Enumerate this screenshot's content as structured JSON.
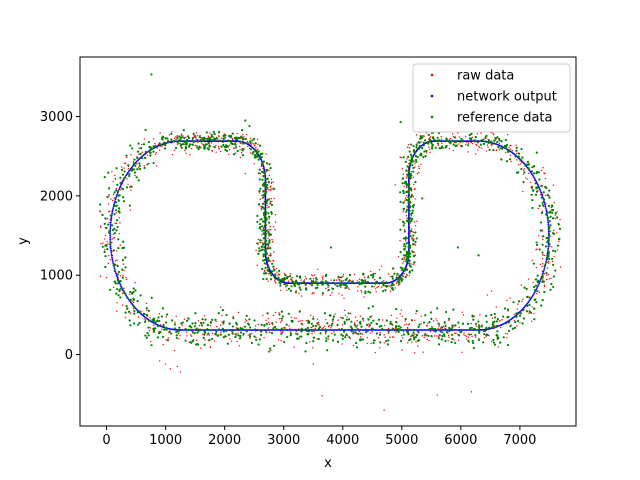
{
  "chart_data": {
    "type": "scatter",
    "title": "",
    "xlabel": "x",
    "ylabel": "y",
    "xlim": [
      -450,
      7950
    ],
    "ylim": [
      -900,
      3750
    ],
    "xticks": [
      0,
      1000,
      2000,
      3000,
      4000,
      5000,
      6000,
      7000
    ],
    "yticks": [
      0,
      1000,
      2000,
      3000
    ],
    "grid": false,
    "legend_position": "top-right",
    "legend": [
      {
        "label": "raw data",
        "color": "#ff0000"
      },
      {
        "label": "network output",
        "color": "#0000ff"
      },
      {
        "label": "reference data",
        "color": "#008000"
      }
    ],
    "series": [
      {
        "name": "raw data",
        "color": "#ff0000",
        "marker": "point",
        "points": [
          [
            -20,
            1500
          ],
          [
            10,
            1420
          ],
          [
            60,
            1350
          ],
          [
            -30,
            1320
          ],
          [
            100,
            1250
          ],
          [
            900,
            -80
          ],
          [
            1000,
            -120
          ],
          [
            1080,
            -180
          ],
          [
            1200,
            -150
          ],
          [
            1250,
            -220
          ],
          [
            1150,
            50
          ],
          [
            3500,
            -120
          ],
          [
            3650,
            -520
          ],
          [
            4700,
            -700
          ],
          [
            5600,
            -510
          ],
          [
            6180,
            -470
          ],
          [
            4700,
            250
          ],
          [
            4800,
            220
          ],
          [
            4900,
            280
          ],
          [
            5000,
            240
          ],
          [
            5150,
            230
          ],
          [
            5800,
            220
          ],
          [
            5950,
            250
          ],
          [
            6100,
            230
          ],
          [
            6250,
            220
          ],
          [
            6450,
            750
          ],
          [
            6520,
            800
          ],
          [
            6600,
            600
          ],
          [
            7000,
            400
          ],
          [
            7200,
            420
          ],
          [
            7380,
            1050
          ],
          [
            7420,
            1250
          ],
          [
            7650,
            1650
          ],
          [
            7680,
            1700
          ],
          [
            2250,
            200
          ],
          [
            2350,
            2280
          ],
          [
            4000,
            900
          ],
          [
            4350,
            920
          ]
        ]
      },
      {
        "name": "network output",
        "color": "#0000ff",
        "marker": "point",
        "path": {
          "straight_top_left": [
            [
              1550,
              2690
            ],
            [
              1950,
              2690
            ]
          ],
          "left_loop_center": [
            1250,
            1500
          ],
          "left_loop_radius": 1190,
          "right_loop_center": [
            6300,
            1500
          ],
          "right_loop_radius": 1190,
          "inner_top_left": [
            2690,
            2200
          ],
          "inner_bottom": [
            [
              2690,
              1250
            ],
            [
              3150,
              890
            ],
            [
              4450,
              890
            ],
            [
              5120,
              1250
            ]
          ],
          "inner_top_right": [
            5120,
            2200
          ],
          "bottom_straight": [
            [
              1250,
              310
            ],
            [
              6300,
              310
            ]
          ]
        }
      },
      {
        "name": "reference data",
        "color": "#008000",
        "marker": "point"
      }
    ]
  }
}
